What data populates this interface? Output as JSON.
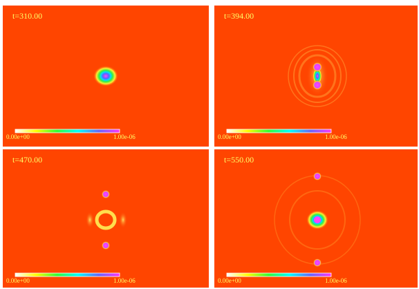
{
  "panels": [
    {
      "time": "t=310.00",
      "colorbar_min": "0.00e+00",
      "colorbar_max": "1.00e-06"
    },
    {
      "time": "t=394.00",
      "colorbar_min": "0.00e+00",
      "colorbar_max": "1.00e-06"
    },
    {
      "time": "t=470.00",
      "colorbar_min": "0.00e+00",
      "colorbar_max": "1.00e-06"
    },
    {
      "time": "t=550.00",
      "colorbar_min": "0.00e+00",
      "colorbar_max": "1.00e-06"
    }
  ]
}
